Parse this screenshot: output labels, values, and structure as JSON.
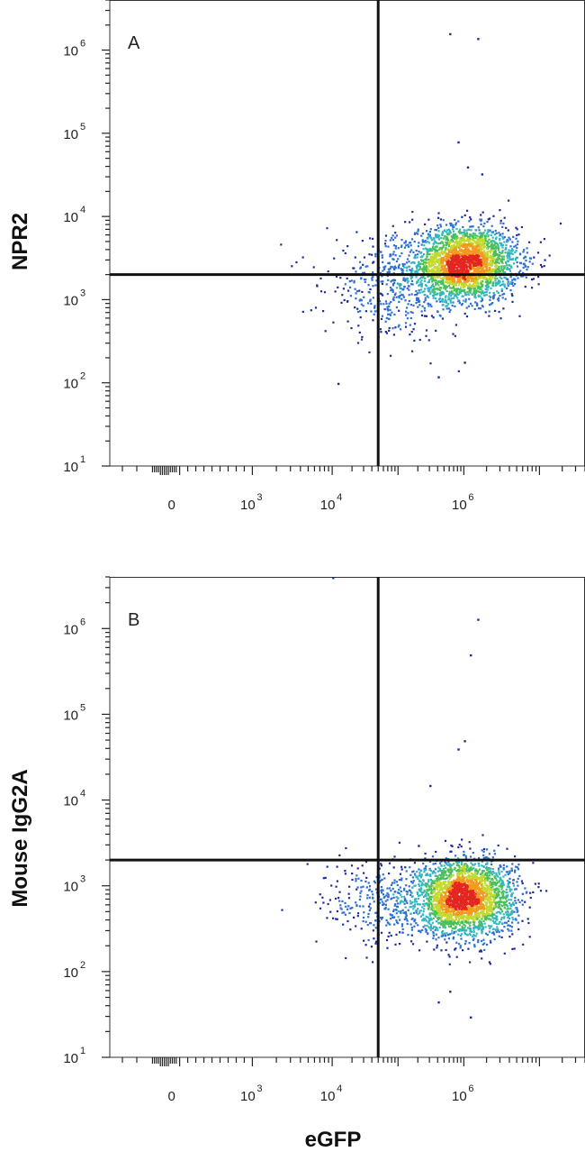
{
  "chart_data": [
    {
      "type": "scatter",
      "subtype": "flow-cytometry-density",
      "panel_label": "A",
      "xlabel": "",
      "ylabel": "NPR2",
      "x_scale": "biexponential",
      "y_scale": "log",
      "xlim": [
        -30000,
        40000000
      ],
      "ylim": [
        10,
        4000000
      ],
      "x_ticks": [
        {
          "value": 0,
          "base": "0",
          "exp": ""
        },
        {
          "value": 1000,
          "base": "10",
          "exp": "3"
        },
        {
          "value": 10000,
          "base": "10",
          "exp": "4"
        },
        {
          "value": 1000000,
          "base": "10",
          "exp": "6"
        }
      ],
      "y_ticks": [
        {
          "value": 10,
          "base": "10",
          "exp": "1"
        },
        {
          "value": 100,
          "base": "10",
          "exp": "2"
        },
        {
          "value": 1000,
          "base": "10",
          "exp": "3"
        },
        {
          "value": 10000,
          "base": "10",
          "exp": "4"
        },
        {
          "value": 100000,
          "base": "10",
          "exp": "5"
        },
        {
          "value": 1000000,
          "base": "10",
          "exp": "6"
        }
      ],
      "quadrant_gate": {
        "x": 50000,
        "y": 2000
      },
      "population": {
        "x_center": 1000000,
        "y_center": 2800,
        "x_spread_decades": 0.35,
        "y_spread_decades": 0.22,
        "events": 2600
      },
      "tail": {
        "x_center": 100000,
        "y_center": 1500,
        "x_spread_decades": 0.55,
        "y_spread_decades": 0.3,
        "events": 500
      },
      "outliers": [
        {
          "x": 600000,
          "y": 1600000
        },
        {
          "x": 1500000,
          "y": 1400000
        },
        {
          "x": 800000,
          "y": 80000
        },
        {
          "x": 1100000,
          "y": 40000
        },
        {
          "x": 1700000,
          "y": 33000
        },
        {
          "x": 12000,
          "y": 100
        },
        {
          "x": 400000,
          "y": 120
        },
        {
          "x": 1000000,
          "y": 180
        }
      ],
      "colors": [
        "#1f2d99",
        "#2f6fd0",
        "#33b6c2",
        "#49c05a",
        "#c4d930",
        "#f29a1e",
        "#e3261f"
      ]
    },
    {
      "type": "scatter",
      "subtype": "flow-cytometry-density",
      "panel_label": "B",
      "xlabel": "eGFP",
      "ylabel": "Mouse IgG2A",
      "x_scale": "biexponential",
      "y_scale": "log",
      "xlim": [
        -30000,
        40000000
      ],
      "ylim": [
        10,
        4000000
      ],
      "x_ticks": [
        {
          "value": 0,
          "base": "0",
          "exp": ""
        },
        {
          "value": 1000,
          "base": "10",
          "exp": "3"
        },
        {
          "value": 10000,
          "base": "10",
          "exp": "4"
        },
        {
          "value": 1000000,
          "base": "10",
          "exp": "6"
        }
      ],
      "y_ticks": [
        {
          "value": 10,
          "base": "10",
          "exp": "1"
        },
        {
          "value": 100,
          "base": "10",
          "exp": "2"
        },
        {
          "value": 1000,
          "base": "10",
          "exp": "3"
        },
        {
          "value": 10000,
          "base": "10",
          "exp": "4"
        },
        {
          "value": 100000,
          "base": "10",
          "exp": "5"
        },
        {
          "value": 1000000,
          "base": "10",
          "exp": "6"
        }
      ],
      "quadrant_gate": {
        "x": 50000,
        "y": 2000
      },
      "population": {
        "x_center": 1000000,
        "y_center": 750,
        "x_spread_decades": 0.33,
        "y_spread_decades": 0.22,
        "events": 2600
      },
      "tail": {
        "x_center": 100000,
        "y_center": 650,
        "x_spread_decades": 0.55,
        "y_spread_decades": 0.25,
        "events": 450
      },
      "outliers": [
        {
          "x": 10000,
          "y": 4000000
        },
        {
          "x": 1500000,
          "y": 1300000
        },
        {
          "x": 1200000,
          "y": 500000
        },
        {
          "x": 1000000,
          "y": 50000
        },
        {
          "x": 800000,
          "y": 40000
        },
        {
          "x": 300000,
          "y": 15000
        },
        {
          "x": 200000,
          "y": 3000
        },
        {
          "x": 600000,
          "y": 60
        },
        {
          "x": 400000,
          "y": 45
        },
        {
          "x": 1200000,
          "y": 30
        }
      ],
      "colors": [
        "#1f2d99",
        "#2f6fd0",
        "#33b6c2",
        "#49c05a",
        "#c4d930",
        "#f29a1e",
        "#e3261f"
      ]
    }
  ]
}
